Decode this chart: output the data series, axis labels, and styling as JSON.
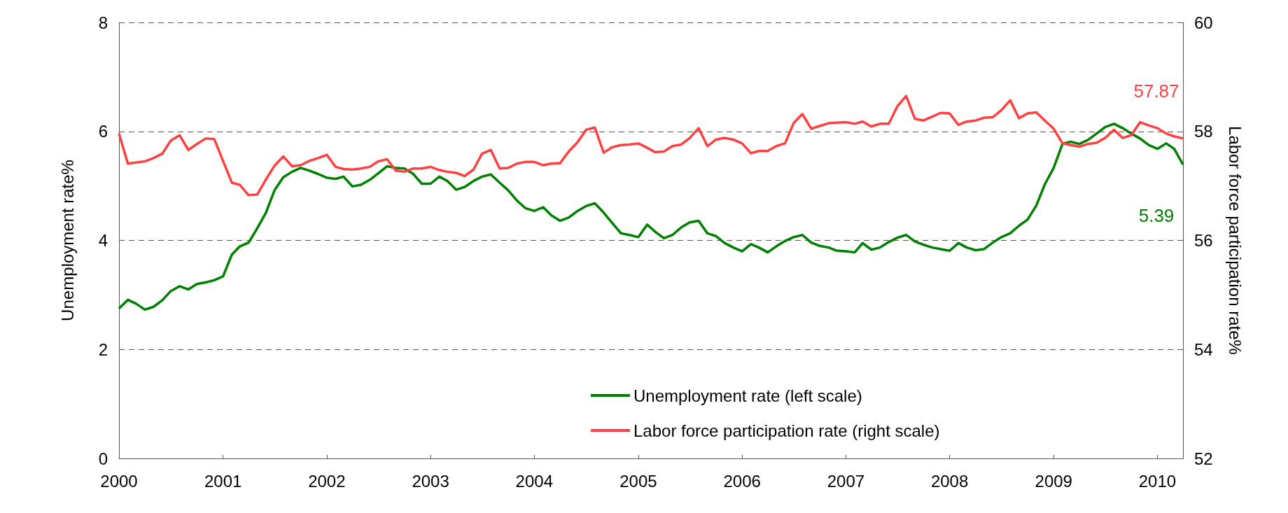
{
  "chart_data": {
    "type": "line",
    "ylabel": "Unemployment rate%",
    "y2label": "Labor force participation rate%",
    "x": [
      "2000-01",
      "2000-02",
      "2000-03",
      "2000-04",
      "2000-05",
      "2000-06",
      "2000-07",
      "2000-08",
      "2000-09",
      "2000-10",
      "2000-11",
      "2000-12",
      "2001-01",
      "2001-02",
      "2001-03",
      "2001-04",
      "2001-05",
      "2001-06",
      "2001-07",
      "2001-08",
      "2001-09",
      "2001-10",
      "2001-11",
      "2001-12",
      "2002-01",
      "2002-02",
      "2002-03",
      "2002-04",
      "2002-05",
      "2002-06",
      "2002-07",
      "2002-08",
      "2002-09",
      "2002-10",
      "2002-11",
      "2002-12",
      "2003-01",
      "2003-02",
      "2003-03",
      "2003-04",
      "2003-05",
      "2003-06",
      "2003-07",
      "2003-08",
      "2003-09",
      "2003-10",
      "2003-11",
      "2003-12",
      "2004-01",
      "2004-02",
      "2004-03",
      "2004-04",
      "2004-05",
      "2004-06",
      "2004-07",
      "2004-08",
      "2004-09",
      "2004-10",
      "2004-11",
      "2004-12",
      "2005-01",
      "2005-02",
      "2005-03",
      "2005-04",
      "2005-05",
      "2005-06",
      "2005-07",
      "2005-08",
      "2005-09",
      "2005-10",
      "2005-11",
      "2005-12",
      "2006-01",
      "2006-02",
      "2006-03",
      "2006-04",
      "2006-05",
      "2006-06",
      "2006-07",
      "2006-08",
      "2006-09",
      "2006-10",
      "2006-11",
      "2006-12",
      "2007-01",
      "2007-02",
      "2007-03",
      "2007-04",
      "2007-05",
      "2007-06",
      "2007-07",
      "2007-08",
      "2007-09",
      "2007-10",
      "2007-11",
      "2007-12",
      "2008-01",
      "2008-02",
      "2008-03",
      "2008-04",
      "2008-05",
      "2008-06",
      "2008-07",
      "2008-08",
      "2008-09",
      "2008-10",
      "2008-11",
      "2008-12",
      "2009-01",
      "2009-02",
      "2009-03",
      "2009-04",
      "2009-05",
      "2009-06",
      "2009-07",
      "2009-08",
      "2009-09",
      "2009-10",
      "2009-11",
      "2009-12",
      "2010-01",
      "2010-02",
      "2010-03",
      "2010-04"
    ],
    "series": [
      {
        "name": "Unemployment rate (left scale)",
        "color": "#008000",
        "values": [
          2.75,
          2.91,
          2.84,
          2.73,
          2.78,
          2.9,
          3.07,
          3.16,
          3.1,
          3.2,
          3.23,
          3.27,
          3.34,
          3.74,
          3.89,
          3.96,
          4.22,
          4.51,
          4.92,
          5.16,
          5.26,
          5.33,
          5.28,
          5.22,
          5.15,
          5.13,
          5.17,
          4.99,
          5.02,
          5.11,
          5.23,
          5.36,
          5.33,
          5.32,
          5.22,
          5.04,
          5.04,
          5.17,
          5.09,
          4.93,
          4.98,
          5.09,
          5.17,
          5.21,
          5.06,
          4.92,
          4.73,
          4.59,
          4.54,
          4.61,
          4.46,
          4.36,
          4.42,
          4.54,
          4.63,
          4.68,
          4.51,
          4.32,
          4.13,
          4.1,
          4.06,
          4.29,
          4.16,
          4.04,
          4.1,
          4.24,
          4.33,
          4.36,
          4.13,
          4.08,
          3.95,
          3.87,
          3.8,
          3.93,
          3.87,
          3.78,
          3.89,
          3.99,
          4.06,
          4.1,
          3.96,
          3.9,
          3.87,
          3.81,
          3.8,
          3.78,
          3.95,
          3.83,
          3.87,
          3.97,
          4.05,
          4.1,
          3.98,
          3.92,
          3.87,
          3.84,
          3.81,
          3.95,
          3.87,
          3.82,
          3.84,
          3.96,
          4.06,
          4.13,
          4.27,
          4.38,
          4.64,
          5.03,
          5.33,
          5.77,
          5.81,
          5.77,
          5.84,
          5.96,
          6.08,
          6.14,
          6.06,
          5.96,
          5.87,
          5.75,
          5.68,
          5.78,
          5.68,
          5.39
        ],
        "value_labels": [
          null,
          null,
          null,
          null,
          null,
          null,
          null,
          null,
          null,
          null,
          null,
          null,
          null,
          null,
          null,
          null,
          null,
          null,
          null,
          null,
          null,
          null,
          null,
          null,
          null,
          null,
          null,
          null,
          null,
          null,
          null,
          null,
          null,
          null,
          null,
          null,
          null,
          null,
          null,
          null,
          null,
          null,
          null,
          null,
          null,
          null,
          null,
          null,
          null,
          null,
          null,
          null,
          null,
          null,
          null,
          null,
          null,
          null,
          null,
          null,
          null,
          null,
          null,
          null,
          null,
          null,
          null,
          null,
          null,
          null,
          null,
          null,
          null,
          null,
          null,
          null,
          null,
          null,
          null,
          null,
          null,
          null,
          null,
          null,
          null,
          null,
          null,
          null,
          null,
          null,
          null,
          null,
          null,
          null,
          null,
          null,
          null,
          null,
          null,
          null,
          null,
          null,
          null,
          null,
          null,
          null,
          null,
          null,
          null,
          null,
          null,
          null,
          null,
          null,
          null,
          null,
          null,
          null,
          null,
          null,
          null,
          null,
          null,
          "5.39"
        ]
      },
      {
        "name": "Labor force participation rate (right scale)",
        "color": "#ff4040",
        "axis": "y2",
        "values": [
          57.96,
          57.41,
          57.43,
          57.45,
          57.51,
          57.59,
          57.83,
          57.93,
          57.66,
          57.77,
          57.87,
          57.86,
          57.46,
          57.06,
          57.02,
          56.83,
          56.84,
          57.12,
          57.37,
          57.54,
          57.36,
          57.38,
          57.46,
          57.51,
          57.57,
          57.35,
          57.31,
          57.3,
          57.32,
          57.35,
          57.45,
          57.49,
          57.28,
          57.26,
          57.32,
          57.32,
          57.35,
          57.29,
          57.26,
          57.24,
          57.18,
          57.3,
          57.59,
          57.66,
          57.32,
          57.33,
          57.41,
          57.44,
          57.44,
          57.38,
          57.41,
          57.42,
          57.63,
          57.8,
          58.03,
          58.07,
          57.61,
          57.71,
          57.75,
          57.76,
          57.78,
          57.7,
          57.62,
          57.63,
          57.73,
          57.76,
          57.88,
          58.06,
          57.73,
          57.85,
          57.88,
          57.85,
          57.78,
          57.6,
          57.64,
          57.64,
          57.73,
          57.78,
          58.15,
          58.32,
          58.05,
          58.1,
          58.15,
          58.16,
          58.17,
          58.14,
          58.18,
          58.09,
          58.14,
          58.14,
          58.46,
          58.65,
          58.23,
          58.2,
          58.27,
          58.34,
          58.33,
          58.12,
          58.18,
          58.2,
          58.25,
          58.26,
          58.39,
          58.57,
          58.24,
          58.33,
          58.35,
          58.2,
          58.05,
          57.78,
          57.75,
          57.72,
          57.77,
          57.79,
          57.88,
          58.03,
          57.88,
          57.93,
          58.17,
          58.11,
          58.06,
          57.96,
          57.91,
          57.87
        ],
        "value_labels": [
          null,
          null,
          null,
          null,
          null,
          null,
          null,
          null,
          null,
          null,
          null,
          null,
          null,
          null,
          null,
          null,
          null,
          null,
          null,
          null,
          null,
          null,
          null,
          null,
          null,
          null,
          null,
          null,
          null,
          null,
          null,
          null,
          null,
          null,
          null,
          null,
          null,
          null,
          null,
          null,
          null,
          null,
          null,
          null,
          null,
          null,
          null,
          null,
          null,
          null,
          null,
          null,
          null,
          null,
          null,
          null,
          null,
          null,
          null,
          null,
          null,
          null,
          null,
          null,
          null,
          null,
          null,
          null,
          null,
          null,
          null,
          null,
          null,
          null,
          null,
          null,
          null,
          null,
          null,
          null,
          null,
          null,
          null,
          null,
          null,
          null,
          null,
          null,
          null,
          null,
          null,
          null,
          null,
          null,
          null,
          null,
          null,
          null,
          null,
          null,
          null,
          null,
          null,
          null,
          null,
          null,
          null,
          null,
          null,
          null,
          null,
          null,
          null,
          null,
          null,
          null,
          null,
          null,
          null,
          null,
          null,
          null,
          null,
          "57.87"
        ]
      }
    ],
    "xlim": [
      "2000-01",
      "2010-04"
    ],
    "xticks": [
      "2000",
      "2001",
      "2002",
      "2003",
      "2004",
      "2005",
      "2006",
      "2007",
      "2008",
      "2009",
      "2010"
    ],
    "ylim": [
      0,
      8
    ],
    "yticks": [
      0,
      2,
      4,
      6,
      8
    ],
    "y2lim": [
      52,
      60
    ],
    "y2ticks": [
      52,
      54,
      56,
      58,
      60
    ],
    "grid": "y",
    "legend": "bottom",
    "marker": "none",
    "line_style": "solid"
  }
}
